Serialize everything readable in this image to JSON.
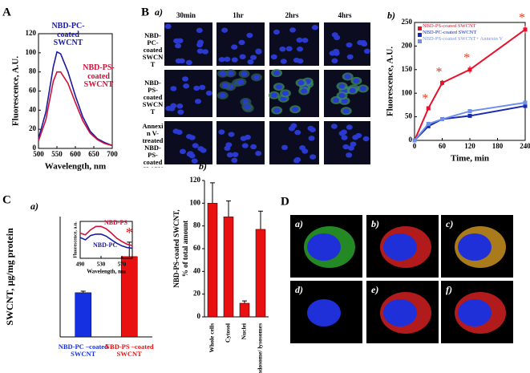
{
  "chart_data": [
    {
      "type": "line",
      "xlabel": "Wavelength, nm",
      "ylabel": "Fluorescence, A.U.",
      "x": [
        500,
        520,
        540,
        550,
        560,
        580,
        600,
        620,
        640,
        660,
        680,
        700
      ],
      "series": [
        {
          "name": "NBD-PC-coated SWCNT",
          "color": "#1a1aa0",
          "values": [
            10,
            38,
            85,
            101,
            99,
            80,
            55,
            33,
            18,
            10,
            6,
            3
          ]
        },
        {
          "name": "NBD-PS-coated SWCNT",
          "color": "#d0103a",
          "values": [
            8,
            30,
            70,
            80,
            80,
            68,
            48,
            29,
            16,
            9,
            5,
            3
          ]
        }
      ],
      "xlim": [
        500,
        700
      ],
      "xticks": [
        500,
        550,
        600,
        650,
        700
      ],
      "ylim": [
        0,
        120
      ],
      "yticks": [
        0,
        20,
        40,
        60,
        80,
        100,
        120
      ]
    },
    {
      "type": "line",
      "label": "b)",
      "xlabel": "Time, min",
      "ylabel": "Fluorescence, A.U.",
      "annotation": "*",
      "x": [
        0,
        30,
        60,
        120,
        240
      ],
      "series": [
        {
          "name": "NBD-PS-coated SWCNT",
          "color": "#e8102a",
          "values": [
            0,
            68,
            122,
            150,
            235
          ],
          "errors": [
            0,
            4,
            6,
            8,
            8
          ],
          "significant": [
            false,
            true,
            true,
            true,
            true
          ]
        },
        {
          "name": "NBD-PC-coated SWCNT",
          "color": "#1a2ab0",
          "values": [
            0,
            30,
            45,
            52,
            73
          ]
        },
        {
          "name": "NBD-PS-coated SWCNT+ Annexin V",
          "color": "#7090e8",
          "values": [
            0,
            35,
            45,
            62,
            80
          ]
        }
      ],
      "xlim": [
        0,
        240
      ],
      "xticks": [
        0,
        60,
        120,
        180,
        240
      ],
      "ylim": [
        0,
        250
      ],
      "yticks": [
        0,
        50,
        100,
        150,
        200,
        250
      ]
    },
    {
      "type": "bar",
      "label": "a)",
      "ylabel": "SWCNT, µg/mg protein",
      "annotation": "*",
      "categories": [
        "NBD-PC –coated SWCNT",
        "NBD-PS –coated SWCNT"
      ],
      "colors": [
        "#1530e0",
        "#e81010"
      ],
      "values": [
        1.47,
        2.67
      ],
      "errors": [
        0.05,
        0.48
      ],
      "ylim": [
        0,
        4
      ]
    },
    {
      "type": "line",
      "xlabel": "Wavelength, nm",
      "ylabel": "Fluorescence, a.u.",
      "x": [
        490,
        500,
        510,
        520,
        530,
        540,
        550,
        560,
        570,
        580,
        590
      ],
      "series": [
        {
          "name": "NBD-PS",
          "color": "#d0103a",
          "values": [
            0.75,
            0.7,
            0.85,
            0.95,
            0.95,
            0.88,
            0.75,
            0.6,
            0.5,
            0.42,
            0.38
          ]
        },
        {
          "name": "NBD-PC",
          "color": "#1a1aa0",
          "values": [
            0.62,
            0.55,
            0.68,
            0.72,
            0.72,
            0.66,
            0.55,
            0.45,
            0.37,
            0.32,
            0.3
          ]
        }
      ],
      "xlim": [
        490,
        590
      ],
      "xticks": [
        490,
        530,
        570
      ],
      "ylim": [
        0,
        1.1
      ]
    },
    {
      "type": "bar",
      "label": "b)",
      "ylabel": [
        "NBD-PS-coated SWCNT,",
        "% of  total amount"
      ],
      "categories": [
        "Whole cells",
        "Cytosol",
        "Nuclei",
        "Endosome/ lysosomes"
      ],
      "colors": [
        "#e81010",
        "#e81010",
        "#e81010",
        "#e81010"
      ],
      "values": [
        100,
        88,
        12,
        77
      ],
      "errors": [
        18,
        14,
        2,
        16
      ],
      "ylim": [
        0,
        120
      ],
      "yticks": [
        0,
        20,
        40,
        60,
        80,
        100,
        120
      ]
    }
  ],
  "figure": {
    "panel_letters": [
      "A",
      "B",
      "C",
      "D"
    ],
    "microscopy_B": {
      "label": "a)",
      "columns": [
        "30min",
        "1hr",
        "2hrs",
        "4hrs"
      ],
      "rows": [
        "NBD-PC-coated SWCNT",
        "NBD-PS-coated SWCNT",
        "Annexin V-treated NBD-PS-coated SWCNT"
      ]
    },
    "microscopy_D": {
      "labels": [
        "a)",
        "b)",
        "c)",
        "d)",
        "e)",
        "f)"
      ]
    }
  }
}
